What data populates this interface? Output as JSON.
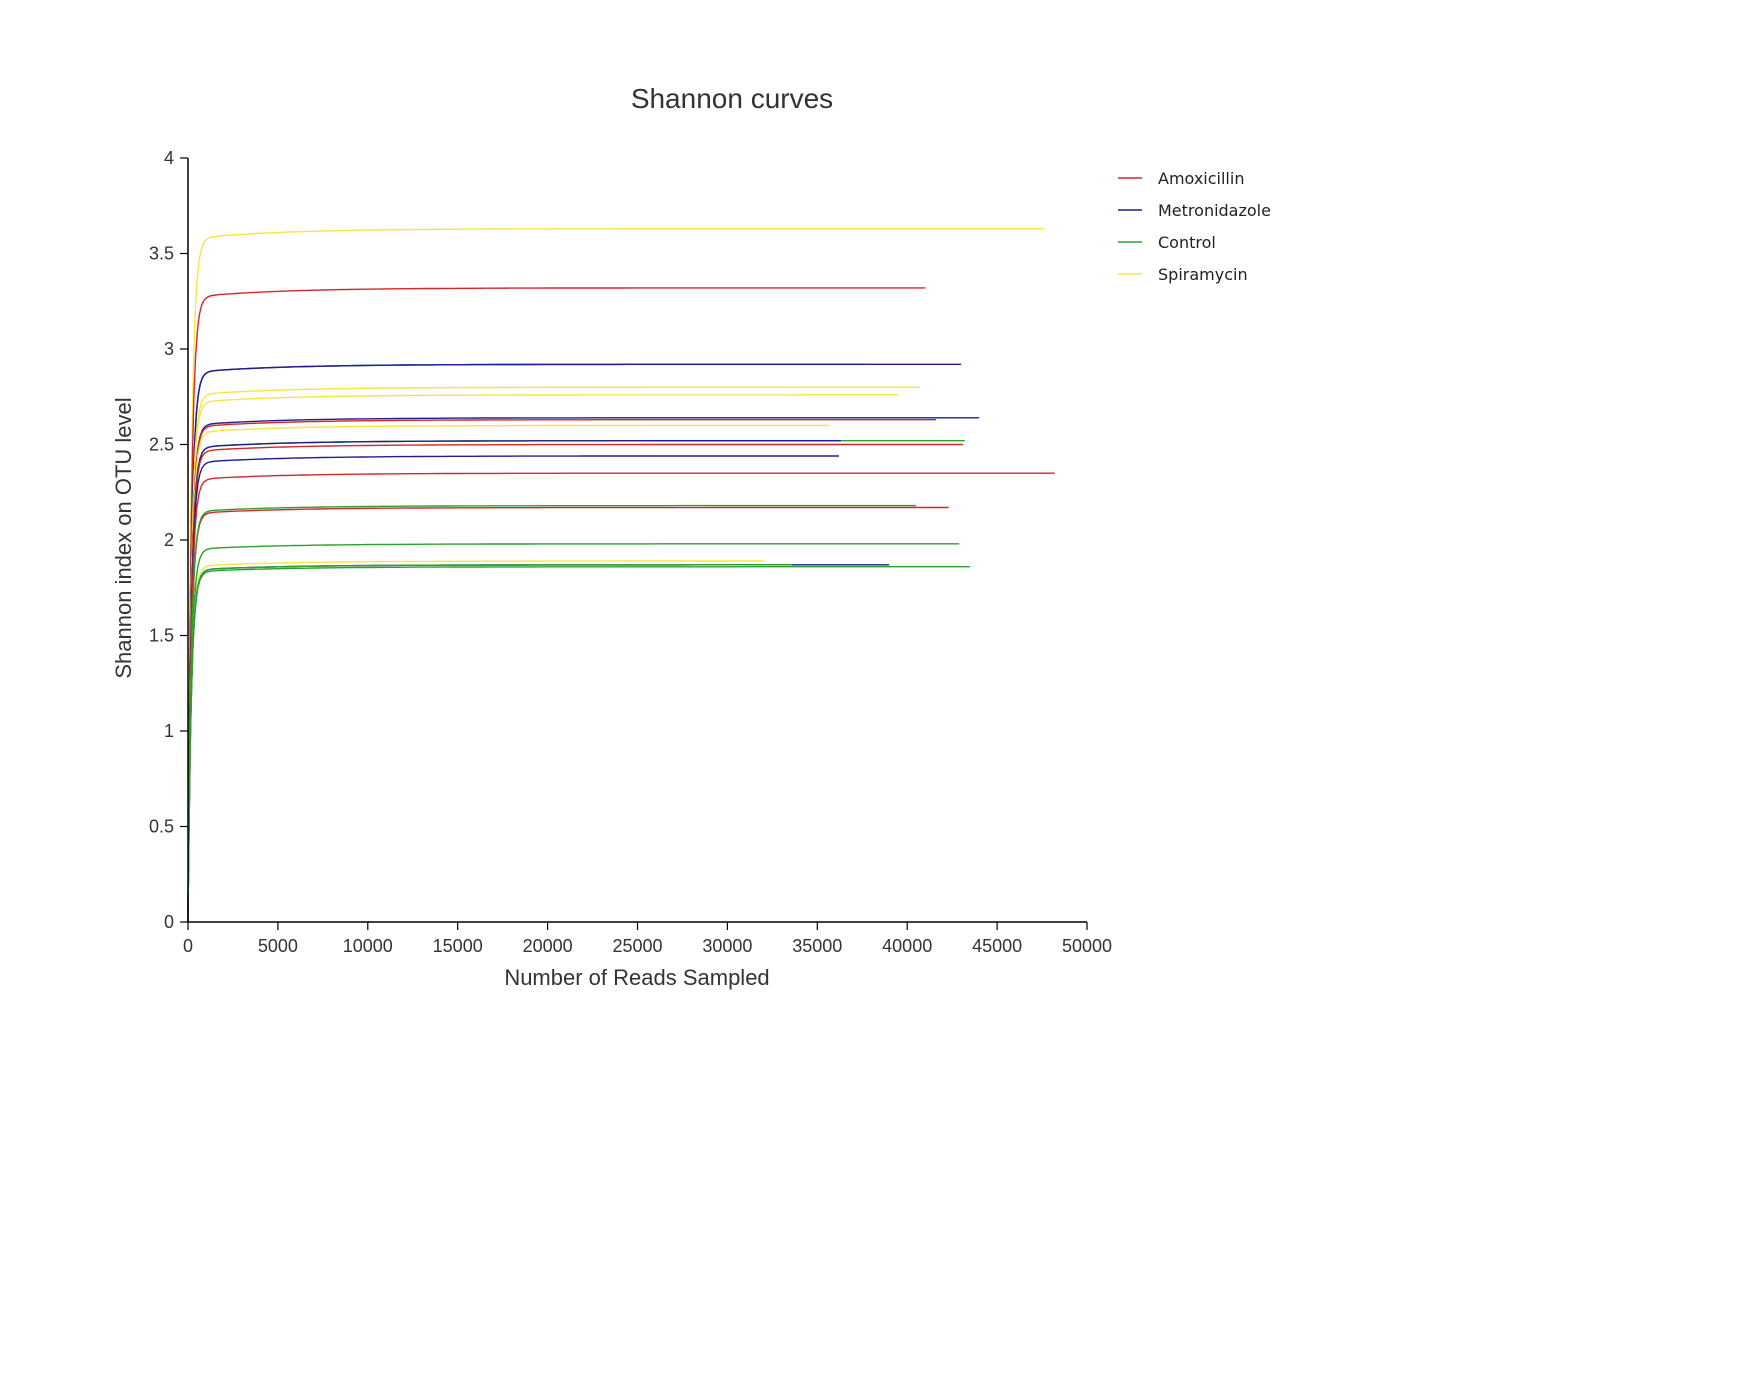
{
  "chart_data": {
    "type": "line",
    "title": "Shannon curves",
    "xlabel": "Number of Reads Sampled",
    "ylabel": "Shannon index on OTU level",
    "xlim": [
      0,
      50000
    ],
    "ylim": [
      0,
      4
    ],
    "xticks": [
      0,
      5000,
      10000,
      15000,
      20000,
      25000,
      30000,
      35000,
      40000,
      45000,
      50000
    ],
    "yticks": [
      0,
      0.5,
      1,
      1.5,
      2,
      2.5,
      3,
      3.5,
      4
    ],
    "grid": false,
    "legend_position": "top-right",
    "colors": {
      "Amoxicillin": "#d62728",
      "Metronidazole": "#1f1f8f",
      "Control": "#2ca02c",
      "Spiramycin": "#f5e642"
    },
    "legend": [
      "Amoxicillin",
      "Metronidazole",
      "Control",
      "Spiramycin"
    ],
    "series": [
      {
        "group": "Spiramycin",
        "max_x": 47600,
        "plateau": 3.63
      },
      {
        "group": "Amoxicillin",
        "max_x": 41000,
        "plateau": 3.32
      },
      {
        "group": "Metronidazole",
        "max_x": 43000,
        "plateau": 2.92
      },
      {
        "group": "Metronidazole",
        "max_x": 37700,
        "plateau": 2.92
      },
      {
        "group": "Spiramycin",
        "max_x": 40700,
        "plateau": 2.8
      },
      {
        "group": "Spiramycin",
        "max_x": 39500,
        "plateau": 2.76
      },
      {
        "group": "Metronidazole",
        "max_x": 44000,
        "plateau": 2.64
      },
      {
        "group": "Amoxicillin",
        "max_x": 41600,
        "plateau": 2.63
      },
      {
        "group": "Spiramycin",
        "max_x": 35700,
        "plateau": 2.6
      },
      {
        "group": "Control",
        "max_x": 43200,
        "plateau": 2.52
      },
      {
        "group": "Metronidazole",
        "max_x": 36300,
        "plateau": 2.52
      },
      {
        "group": "Amoxicillin",
        "max_x": 43100,
        "plateau": 2.5
      },
      {
        "group": "Metronidazole",
        "max_x": 36200,
        "plateau": 2.44
      },
      {
        "group": "Amoxicillin",
        "max_x": 48200,
        "plateau": 2.35
      },
      {
        "group": "Amoxicillin",
        "max_x": 42300,
        "plateau": 2.17
      },
      {
        "group": "Control",
        "max_x": 40500,
        "plateau": 2.18
      },
      {
        "group": "Control",
        "max_x": 42900,
        "plateau": 1.98
      },
      {
        "group": "Spiramycin",
        "max_x": 32000,
        "plateau": 1.89
      },
      {
        "group": "Metronidazole",
        "max_x": 39000,
        "plateau": 1.87
      },
      {
        "group": "Control",
        "max_x": 43500,
        "plateau": 1.86
      },
      {
        "group": "Control",
        "max_x": 33600,
        "plateau": 1.87
      }
    ]
  }
}
